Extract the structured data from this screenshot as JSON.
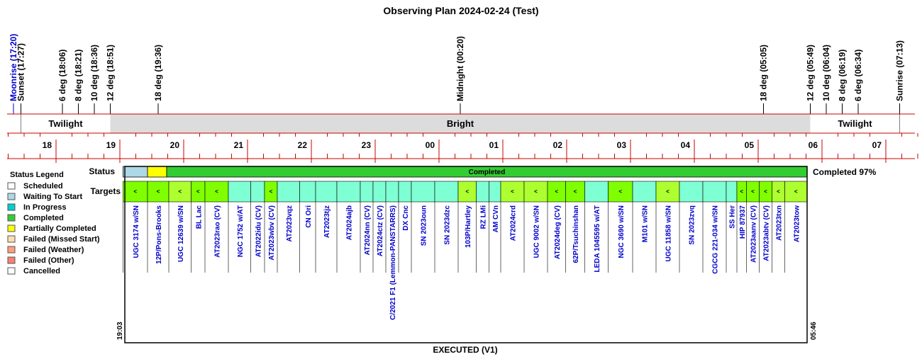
{
  "chart_data": {
    "type": "timeline",
    "title": "Observing Plan 2024-02-24 (Test)",
    "footer": "EXECUTED (V1)",
    "events": [
      {
        "label": "Moonrise (17:20)",
        "time": "17:20",
        "color": "#0000cc"
      },
      {
        "label": "Sunset (17:27)",
        "time": "17:27",
        "color": "#000000"
      },
      {
        "label": "6 deg (18:06)",
        "time": "18:06",
        "color": "#000000"
      },
      {
        "label": "8 deg (18:21)",
        "time": "18:21",
        "color": "#000000"
      },
      {
        "label": "10 deg (18:36)",
        "time": "18:36",
        "color": "#000000"
      },
      {
        "label": "12 deg (18:51)",
        "time": "18:51",
        "color": "#000000"
      },
      {
        "label": "18 deg (19:36)",
        "time": "19:36",
        "color": "#000000"
      },
      {
        "label": "Midnight (00:20)",
        "time": "00:20",
        "color": "#000000"
      },
      {
        "label": "18 deg (05:05)",
        "time": "05:05",
        "color": "#000000"
      },
      {
        "label": "12 deg (05:49)",
        "time": "05:49",
        "color": "#000000"
      },
      {
        "label": "10 deg (06:04)",
        "time": "06:04",
        "color": "#000000"
      },
      {
        "label": "8 deg (06:19)",
        "time": "06:19",
        "color": "#000000"
      },
      {
        "label": "6 deg (06:34)",
        "time": "06:34",
        "color": "#000000"
      },
      {
        "label": "Sunrise (07:13)",
        "time": "07:13",
        "color": "#000000"
      }
    ],
    "sky_bands": [
      {
        "label": "Twilight",
        "start": "17:27",
        "end": "18:51",
        "color": "#ffffff"
      },
      {
        "label": "Bright",
        "start": "18:51",
        "end": "05:49",
        "color": "#dcdcdc"
      },
      {
        "label": "Twilight",
        "start": "05:49",
        "end": "07:13",
        "color": "#ffffff"
      }
    ],
    "hour_ticks": [
      "18",
      "19",
      "20",
      "21",
      "22",
      "23",
      "00",
      "01",
      "02",
      "03",
      "04",
      "05",
      "06",
      "07"
    ],
    "status_row_label": "Status",
    "targets_row_label": "Targets",
    "completion_label": "Completed 97%",
    "status_segments": [
      {
        "start": "19:03",
        "end": "19:26",
        "status": "Waiting To Start"
      },
      {
        "start": "19:26",
        "end": "19:44",
        "status": "Partially Completed"
      },
      {
        "start": "19:44",
        "end": "05:46",
        "status": "Completed",
        "label": "Completed"
      }
    ],
    "plan_start_label": "19:03",
    "plan_end_label": "05:46",
    "targets": [
      {
        "name": "UGC 3174 w/SN",
        "start": "19:03",
        "end": "19:26",
        "color": "#7fff00",
        "mark": "<"
      },
      {
        "name": "12P/Pons-Brooks",
        "start": "19:26",
        "end": "19:46",
        "color": "#7fff00",
        "mark": "<"
      },
      {
        "name": "UGC 12639 w/SN",
        "start": "19:46",
        "end": "20:07",
        "color": "#adff2f",
        "mark": "<"
      },
      {
        "name": "BL Lac",
        "start": "20:07",
        "end": "20:20",
        "color": "#7fff00",
        "mark": "<"
      },
      {
        "name": "AT2023rao (CV)",
        "start": "20:20",
        "end": "20:42",
        "color": "#7fff00",
        "mark": "<"
      },
      {
        "name": "NGC 1752 w/AT",
        "start": "20:42",
        "end": "21:03",
        "color": "#7fffd4",
        "mark": ""
      },
      {
        "name": "AT2022idu (CV)",
        "start": "21:03",
        "end": "21:16",
        "color": "#7fffd4",
        "mark": ""
      },
      {
        "name": "AT2023wbv (CV)",
        "start": "21:16",
        "end": "21:28",
        "color": "#7fff00",
        "mark": "<"
      },
      {
        "name": "AT2023vqz",
        "start": "21:28",
        "end": "21:49",
        "color": "#7fffd4",
        "mark": ""
      },
      {
        "name": "CN Ori",
        "start": "21:49",
        "end": "22:04",
        "color": "#7fffd4",
        "mark": ""
      },
      {
        "name": "AT2023tjz",
        "start": "22:04",
        "end": "22:24",
        "color": "#7fffd4",
        "mark": ""
      },
      {
        "name": "AT2024ajb",
        "start": "22:24",
        "end": "22:46",
        "color": "#7fffd4",
        "mark": ""
      },
      {
        "name": "AT2024nn (CV)",
        "start": "22:46",
        "end": "22:58",
        "color": "#7fffd4",
        "mark": ""
      },
      {
        "name": "AT2024ctz (CV)",
        "start": "22:58",
        "end": "23:10",
        "color": "#7fffd4",
        "mark": ""
      },
      {
        "name": "C/2021 F1 (Lemmon-PANSTARRS)",
        "start": "23:10",
        "end": "23:22",
        "color": "#7fffd4",
        "mark": ""
      },
      {
        "name": "DX Cnc",
        "start": "23:22",
        "end": "23:34",
        "color": "#7fffd4",
        "mark": ""
      },
      {
        "name": "SN 2023oun",
        "start": "23:34",
        "end": "23:56",
        "color": "#7fffd4",
        "mark": ""
      },
      {
        "name": "SN 2023dzc",
        "start": "23:56",
        "end": "00:18",
        "color": "#7fffd4",
        "mark": ""
      },
      {
        "name": "103P/Hartley",
        "start": "00:18",
        "end": "00:35",
        "color": "#adff2f",
        "mark": "<"
      },
      {
        "name": "RZ LMi",
        "start": "00:35",
        "end": "00:47",
        "color": "#7fffd4",
        "mark": ""
      },
      {
        "name": "AM CVn",
        "start": "00:47",
        "end": "00:58",
        "color": "#7fffd4",
        "mark": ""
      },
      {
        "name": "AT2024crd",
        "start": "00:58",
        "end": "01:20",
        "color": "#adff2f",
        "mark": "<"
      },
      {
        "name": "UGC 9002 w/SN",
        "start": "01:20",
        "end": "01:42",
        "color": "#adff2f",
        "mark": "<"
      },
      {
        "name": "AT2024deg (CV)",
        "start": "01:42",
        "end": "01:59",
        "color": "#7fff00",
        "mark": "<"
      },
      {
        "name": "62P/Tsuchinshan",
        "start": "01:59",
        "end": "02:17",
        "color": "#7fff00",
        "mark": "<"
      },
      {
        "name": "LEDA 1045595 w/AT",
        "start": "02:17",
        "end": "02:39",
        "color": "#7fffd4",
        "mark": ""
      },
      {
        "name": "NGC 3690 w/SN",
        "start": "02:39",
        "end": "03:02",
        "color": "#7fff00",
        "mark": "<"
      },
      {
        "name": "M101 w/SN",
        "start": "03:02",
        "end": "03:24",
        "color": "#7fffd4",
        "mark": ""
      },
      {
        "name": "UGC 11858 w/SN",
        "start": "03:24",
        "end": "03:46",
        "color": "#adff2f",
        "mark": "<"
      },
      {
        "name": "SN 2023zvq",
        "start": "03:46",
        "end": "04:08",
        "color": "#7fffd4",
        "mark": ""
      },
      {
        "name": "CGCG 221-034 w/SN",
        "start": "04:08",
        "end": "04:30",
        "color": "#7fffd4",
        "mark": ""
      },
      {
        "name": "SS Her",
        "start": "04:30",
        "end": "04:40",
        "color": "#7fffd4",
        "mark": ""
      },
      {
        "name": "HIP 87937",
        "start": "04:40",
        "end": "04:49",
        "color": "#7fff00",
        "mark": "<"
      },
      {
        "name": "AT2023aanv (CV)",
        "start": "04:49",
        "end": "05:01",
        "color": "#7fff00",
        "mark": "<"
      },
      {
        "name": "AT2023abtv (CV)",
        "start": "05:01",
        "end": "05:13",
        "color": "#7fff00",
        "mark": "<"
      },
      {
        "name": "AT2023txn",
        "start": "05:13",
        "end": "05:25",
        "color": "#adff2f",
        "mark": "<"
      },
      {
        "name": "AT2023tow",
        "start": "05:25",
        "end": "05:46",
        "color": "#adff2f",
        "mark": "<"
      }
    ],
    "legend": {
      "title": "Status Legend",
      "items": [
        {
          "label": "Scheduled",
          "color": "#ffffff"
        },
        {
          "label": "Waiting To Start",
          "color": "#add8e6"
        },
        {
          "label": "In Progress",
          "color": "#00ced1"
        },
        {
          "label": "Completed",
          "color": "#32cd32"
        },
        {
          "label": "Partially Completed",
          "color": "#ffff00"
        },
        {
          "label": "Failed (Missed Start)",
          "color": "#ffdead"
        },
        {
          "label": "Failed (Weather)",
          "color": "#ffa07a"
        },
        {
          "label": "Failed (Other)",
          "color": "#fa8072"
        },
        {
          "label": "Cancelled",
          "color": "#ffffff"
        }
      ]
    },
    "colors": {
      "axis_red": "#cc0000",
      "status_waiting": "#add8e6",
      "status_partial": "#ffff00",
      "status_completed": "#32cd32",
      "target_label": "#0000cc",
      "moon_label": "#0000cc"
    }
  }
}
